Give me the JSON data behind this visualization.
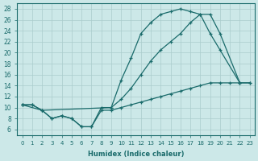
{
  "xlabel": "Humidex (Indice chaleur)",
  "bg_color": "#cce8e8",
  "line_color": "#1a6b6b",
  "grid_color": "#aacccc",
  "xlim": [
    -0.5,
    23.5
  ],
  "ylim": [
    5,
    29
  ],
  "yticks": [
    6,
    8,
    10,
    12,
    14,
    16,
    18,
    20,
    22,
    24,
    26,
    28
  ],
  "xticks": [
    0,
    1,
    2,
    3,
    4,
    5,
    6,
    7,
    8,
    9,
    10,
    11,
    12,
    13,
    14,
    15,
    16,
    17,
    18,
    19,
    20,
    21,
    22,
    23
  ],
  "s1_x": [
    0,
    1,
    2,
    3,
    4,
    5,
    6,
    7,
    8,
    9,
    10,
    11,
    12,
    13,
    14,
    15,
    16,
    17,
    18,
    19,
    20,
    22
  ],
  "s1_y": [
    10.5,
    10.5,
    9.5,
    8.0,
    8.5,
    8.0,
    6.5,
    6.5,
    10.0,
    10.0,
    15.0,
    19.0,
    23.5,
    25.5,
    27.0,
    27.5,
    28.0,
    27.5,
    27.0,
    23.5,
    20.5,
    14.5
  ],
  "s2_x": [
    0,
    2,
    9,
    10,
    11,
    12,
    13,
    14,
    15,
    16,
    17,
    18,
    19,
    20,
    22,
    23
  ],
  "s2_y": [
    10.5,
    9.5,
    10.0,
    11.5,
    13.5,
    16.0,
    18.5,
    20.5,
    22.0,
    23.5,
    25.5,
    27.0,
    27.0,
    23.5,
    14.5,
    14.5
  ],
  "s3_x": [
    0,
    1,
    2,
    3,
    4,
    5,
    6,
    7,
    8,
    9,
    10,
    11,
    12,
    13,
    14,
    15,
    16,
    17,
    18,
    19,
    20,
    21,
    22,
    23
  ],
  "s3_y": [
    10.5,
    10.5,
    9.5,
    8.0,
    8.5,
    8.0,
    6.5,
    6.5,
    9.5,
    9.5,
    10.0,
    10.5,
    11.0,
    11.5,
    12.0,
    12.5,
    13.0,
    13.5,
    14.0,
    14.5,
    14.5,
    14.5,
    14.5,
    14.5
  ]
}
